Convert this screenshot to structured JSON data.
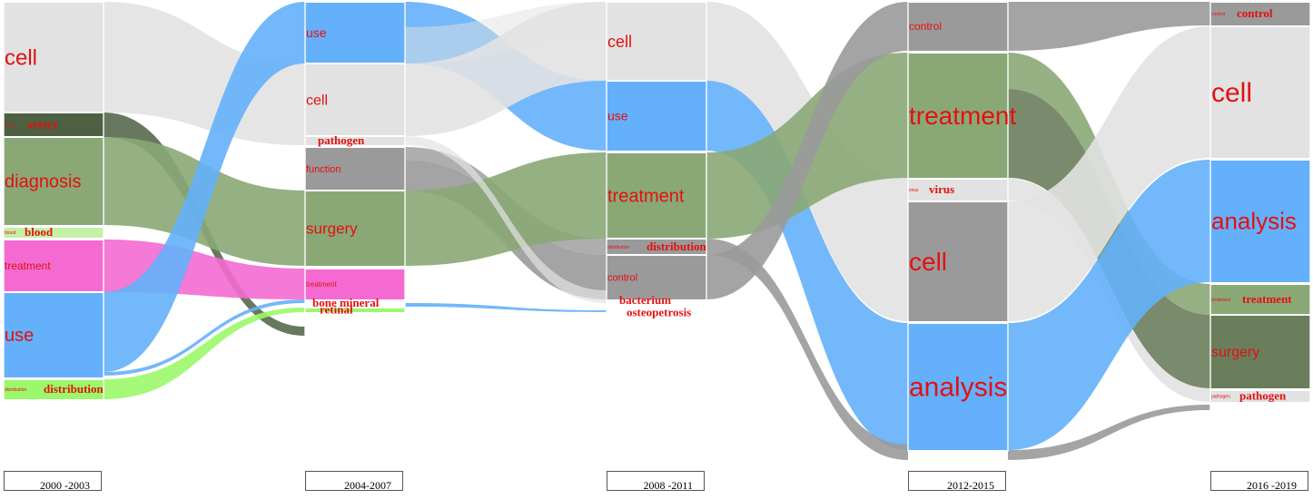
{
  "periods": [
    {
      "label": "2000 -2003"
    },
    {
      "label": "2004-2007"
    },
    {
      "label": "2008 -2011"
    },
    {
      "label": "2012-2015"
    },
    {
      "label": "2016 -2019"
    }
  ],
  "colors": {
    "cell": "#e2e2e2",
    "use": "#64b0fa",
    "analysis": "#64b0fa",
    "treatment": "#8aa876",
    "diagnosis": "#8aa876",
    "surgery_col1": "#8aa876",
    "surgery_col4": "#6a7e5c",
    "artery": "#4e6042",
    "function": "#9a9a9a",
    "control": "#9a9a9a",
    "distribution": "#9a9a9a",
    "pink_treatment": "#f46ad2",
    "blood": "#c4f0a8",
    "green_distribution": "#9cf76a",
    "pathogen": "#e2e2e2",
    "label_red": "#e41010"
  },
  "columns": [
    {
      "period": "2000 -2003",
      "nodes": [
        {
          "id": "c0_cell",
          "small": "",
          "label": "cell"
        },
        {
          "id": "c0_artery",
          "small": "artery",
          "label": "artery"
        },
        {
          "id": "c0_diagnosis",
          "small": "",
          "label": "diagnosis"
        },
        {
          "id": "c0_blood",
          "small": "blood",
          "label": "blood"
        },
        {
          "id": "c0_treatment",
          "small": "",
          "label": "treatment"
        },
        {
          "id": "c0_use",
          "small": "",
          "label": "use"
        },
        {
          "id": "c0_distribution",
          "small": "distribution",
          "label": "distribution"
        }
      ]
    },
    {
      "period": "2004-2007",
      "nodes": [
        {
          "id": "c1_use",
          "small": "",
          "label": "use"
        },
        {
          "id": "c1_cell",
          "small": "",
          "label": "cell"
        },
        {
          "id": "c1_pathogen",
          "small": "",
          "label": "pathogen"
        },
        {
          "id": "c1_function",
          "small": "",
          "label": "function"
        },
        {
          "id": "c1_surgery",
          "small": "",
          "label": "surgery"
        },
        {
          "id": "c1_treatment",
          "small": "",
          "label": "treatment"
        },
        {
          "id": "c1_bone",
          "small": "",
          "label": "bone mineral"
        },
        {
          "id": "c1_retinal",
          "small": "",
          "label": "retinal"
        }
      ]
    },
    {
      "period": "2008 -2011",
      "nodes": [
        {
          "id": "c2_cell",
          "small": "",
          "label": "cell"
        },
        {
          "id": "c2_use",
          "small": "",
          "label": "use"
        },
        {
          "id": "c2_treatment",
          "small": "",
          "label": "treatment"
        },
        {
          "id": "c2_distribution",
          "small": "distribution",
          "label": "distribution"
        },
        {
          "id": "c2_control",
          "small": "",
          "label": "control"
        },
        {
          "id": "c2_bacterium",
          "small": "",
          "label": "bacterium"
        },
        {
          "id": "c2_osteopetrosis",
          "small": "",
          "label": "osteopetrosis"
        }
      ]
    },
    {
      "period": "2012-2015",
      "nodes": [
        {
          "id": "c3_control",
          "small": "",
          "label": "control"
        },
        {
          "id": "c3_treatment",
          "small": "",
          "label": "treatment"
        },
        {
          "id": "c3_virus",
          "small": "virus",
          "label": "virus"
        },
        {
          "id": "c3_cell",
          "small": "",
          "label": "cell"
        },
        {
          "id": "c3_analysis",
          "small": "",
          "label": "analysis"
        }
      ]
    },
    {
      "period": "2016 -2019",
      "nodes": [
        {
          "id": "c4_control",
          "small": "control",
          "label": "control"
        },
        {
          "id": "c4_cell",
          "small": "",
          "label": "cell"
        },
        {
          "id": "c4_analysis",
          "small": "",
          "label": "analysis"
        },
        {
          "id": "c4_treatment",
          "small": "treatment",
          "label": "treatment"
        },
        {
          "id": "c4_surgery",
          "small": "",
          "label": "surgery"
        },
        {
          "id": "c4_pathogen",
          "small": "pathogen",
          "label": "pathogen"
        }
      ]
    }
  ]
}
